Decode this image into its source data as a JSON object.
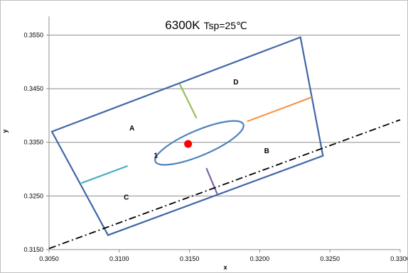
{
  "chart_data": {
    "type": "scatter",
    "title": "6300K",
    "subtitle": "Tsp=25℃",
    "xlabel": "x",
    "ylabel": "y",
    "xlim": [
      0.305,
      0.33
    ],
    "ylim": [
      0.315,
      0.3585
    ],
    "xticks": [
      "0.3050",
      "0.3100",
      "0.3150",
      "0.3200",
      "0.3250",
      "0.3300"
    ],
    "yticks": [
      "0.3150",
      "0.3250",
      "0.3350",
      "0.3450",
      "0.3550"
    ],
    "grid": "horizontal",
    "quadrangle": [
      {
        "x": 0.3052,
        "y": 0.337
      },
      {
        "x": 0.3229,
        "y": 0.3546
      },
      {
        "x": 0.3245,
        "y": 0.3325
      },
      {
        "x": 0.3092,
        "y": 0.3177
      }
    ],
    "ellipse": {
      "center": {
        "x": 0.3157,
        "y": 0.3349
      },
      "semi_major_width": 0.0034,
      "semi_minor_height": 0.0056,
      "rotation_deg": -23
    },
    "target_point": {
      "x": 0.3149,
      "y": 0.3347,
      "color": "#ff0000"
    },
    "divider_lines": [
      {
        "name": "A-D",
        "color": "#9bbb59",
        "x1": 0.3143,
        "y1": 0.3459,
        "x2": 0.3155,
        "y2": 0.3395
      },
      {
        "name": "D-B",
        "color": "#f79646",
        "x1": 0.3191,
        "y1": 0.3389,
        "x2": 0.3237,
        "y2": 0.3434
      },
      {
        "name": "A-C",
        "color": "#4bacc6",
        "x1": 0.3073,
        "y1": 0.3274,
        "x2": 0.3106,
        "y2": 0.3306
      },
      {
        "name": "B-C",
        "color": "#8064a2",
        "x1": 0.3162,
        "y1": 0.3302,
        "x2": 0.317,
        "y2": 0.3252
      }
    ],
    "planckian_line": {
      "x1": 0.305,
      "y1": 0.3152,
      "x2": 0.33,
      "y2": 0.3392,
      "style": "dash-dot"
    },
    "region_labels": [
      {
        "text": "A",
        "x": 0.3109,
        "y": 0.3372
      },
      {
        "text": "D",
        "x": 0.3183,
        "y": 0.3458
      },
      {
        "text": "B",
        "x": 0.3205,
        "y": 0.333
      },
      {
        "text": "C",
        "x": 0.3105,
        "y": 0.3243
      },
      {
        "text": "1",
        "x": 0.3126,
        "y": 0.3321
      }
    ],
    "colors": {
      "outline": "#3f68a6",
      "ellipse": "#4f81bd",
      "grid": "#8c8c8c",
      "axis": "#8c8c8c"
    }
  }
}
